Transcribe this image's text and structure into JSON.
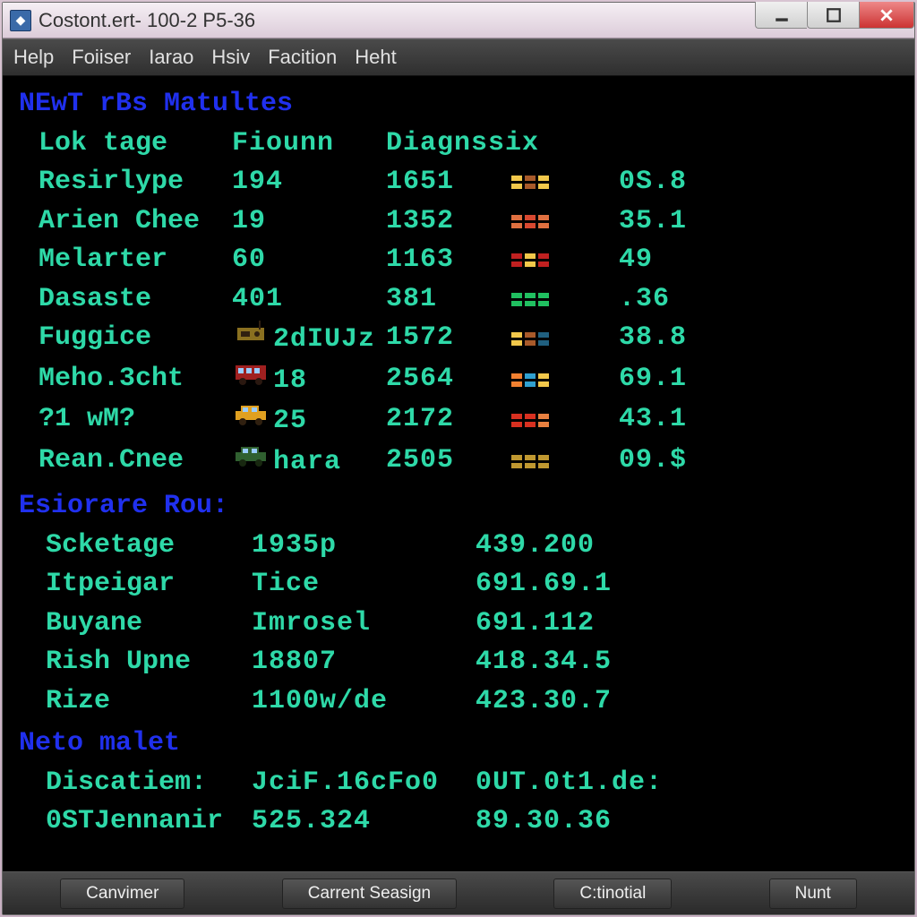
{
  "window": {
    "title": "Costont.ert- 100-2 P5-36",
    "icon_bg": "#3a6aa8"
  },
  "menubar": {
    "items": [
      "Help",
      "Foiiser",
      "Iarao",
      "Hsiv",
      "Facition",
      "Heht"
    ]
  },
  "term": {
    "text_color": "#2ed9a8",
    "header_color": "#2030ee",
    "bg": "#000000",
    "font": "Courier New",
    "section1": {
      "title": "NEwT rBs Matultes",
      "cols": [
        "Lok tage",
        "Fiounn",
        "Diagnssix",
        "",
        ""
      ],
      "rows": [
        {
          "name": "Resirlype",
          "v1": "194",
          "v2": "1651",
          "bars": [
            "#f2c84b",
            "#a85a2a",
            "#f2c84b"
          ],
          "pct": "0S.8",
          "sprite": null
        },
        {
          "name": "Arien Chee",
          "v1": "19",
          "v2": "1352",
          "bars": [
            "#e07040",
            "#d84830",
            "#e07040"
          ],
          "pct": "35.1",
          "sprite": null
        },
        {
          "name": "Melarter",
          "v1": "60",
          "v2": "1163",
          "bars": [
            "#c02020",
            "#f2c84b",
            "#c02020"
          ],
          "pct": "49",
          "sprite": null
        },
        {
          "name": "Dasaste",
          "v1": "401",
          "v2": "381",
          "bars": [
            "#20c060",
            "#20c060",
            "#20c060"
          ],
          "pct": ".36",
          "sprite": null
        },
        {
          "name": "Fuggice",
          "v1": "2dIUJz",
          "v2": "1572",
          "bars": [
            "#f2c84b",
            "#a85a2a",
            "#206080"
          ],
          "pct": "38.8",
          "sprite": "radio",
          "sprite_colors": [
            "#8a7020",
            "#302010"
          ]
        },
        {
          "name": "Meho.3cht",
          "v1": "18",
          "v2": "2564",
          "bars": [
            "#f28030",
            "#30a0d0",
            "#f2c84b"
          ],
          "pct": "69.1",
          "sprite": "bus",
          "sprite_colors": [
            "#a02020",
            "#2a1810"
          ]
        },
        {
          "name": "?1 wM?",
          "v1": "25",
          "v2": "2172",
          "bars": [
            "#d83020",
            "#d83020",
            "#e88040"
          ],
          "pct": "43.1",
          "sprite": "car",
          "sprite_colors": [
            "#e0a020",
            "#302010"
          ]
        },
        {
          "name": "Rean.Cnee",
          "v1": "hara",
          "v2": "2505",
          "bars": [
            "#c09830",
            "#c09830",
            "#c09830"
          ],
          "pct": "09.$",
          "sprite": "car",
          "sprite_colors": [
            "#306030",
            "#182810"
          ]
        }
      ]
    },
    "section2": {
      "title": "Esiorare Rou:",
      "rows": [
        {
          "name": "Scketage",
          "v1": "1935p",
          "v2": "439.200"
        },
        {
          "name": "Itpeigar",
          "v1": "Tice",
          "v2": "691.69.1"
        },
        {
          "name": "Buyane",
          "v1": "Imrosel",
          "v2": "691.112"
        },
        {
          "name": "Rish Upne",
          "v1": "18807",
          "v2": "418.34.5"
        },
        {
          "name": "Rize",
          "v1": "1100w/de",
          "v2": "423.30.7"
        }
      ]
    },
    "section3": {
      "title": "Neto malet",
      "rows": [
        {
          "name": "Discatiem:",
          "v1": "JciF.16cFo0",
          "v2": "0UT.0t1.de:"
        },
        {
          "name": "0STJennanir",
          "v1": "525.324",
          "v2": "89.30.36"
        }
      ]
    }
  },
  "buttons": [
    "Canvimer",
    "Carrent Seasign",
    "C:tinotial",
    "Nunt"
  ]
}
